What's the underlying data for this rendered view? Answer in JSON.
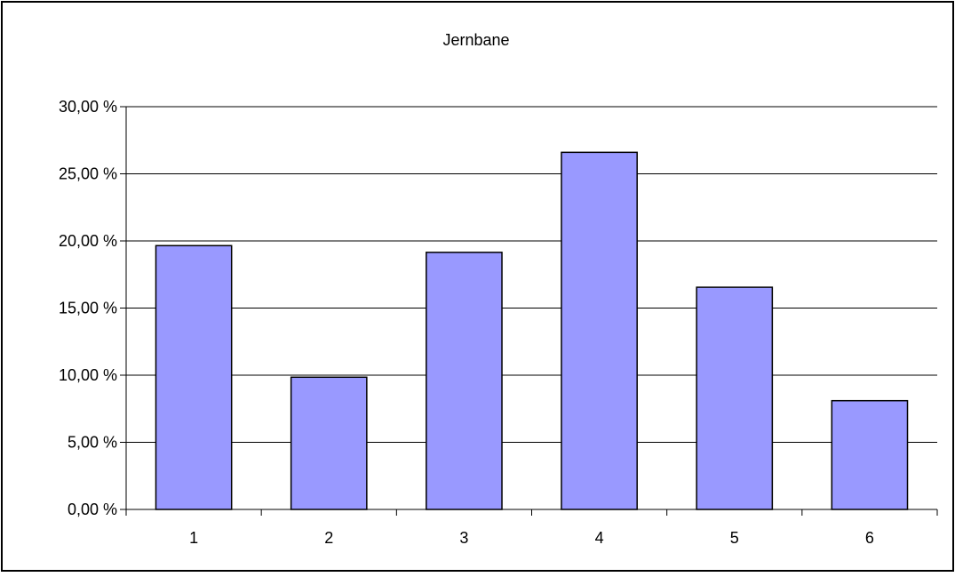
{
  "chart_data": {
    "type": "bar",
    "title": "Jernbane",
    "xlabel": "",
    "ylabel": "",
    "categories": [
      "1",
      "2",
      "3",
      "4",
      "5",
      "6"
    ],
    "values": [
      19.65,
      9.85,
      19.15,
      26.6,
      16.55,
      8.1
    ],
    "ylim": [
      0,
      30
    ],
    "ytick_values": [
      0,
      5,
      10,
      15,
      20,
      25,
      30
    ],
    "ytick_labels": [
      "0,00 %",
      "5,00 %",
      "10,00 %",
      "15,00 %",
      "20,00 %",
      "25,00 %",
      "30,00 %"
    ],
    "grid": true,
    "legend": "none",
    "bar_color": "#9999ff",
    "bar_edge_color": "#000000"
  }
}
